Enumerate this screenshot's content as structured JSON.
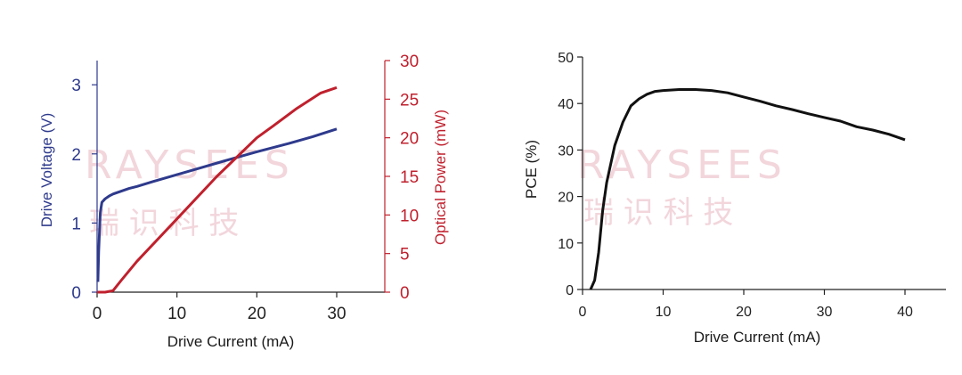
{
  "watermark": {
    "brand": "RAYSEES",
    "chinese": "瑞 识 科 技",
    "color": "#f2d6dc"
  },
  "chart_data": [
    {
      "type": "line",
      "xlabel": "Drive Current (mA)",
      "ylabel": "Drive Voltage (V)",
      "y2label": "Optical Power (mW)",
      "xlim": [
        0,
        35
      ],
      "ylim": [
        0,
        3.35
      ],
      "y2lim": [
        0,
        30
      ],
      "xticks": [
        0,
        10,
        20,
        30
      ],
      "yticks": [
        0,
        1,
        2,
        3
      ],
      "y2ticks": [
        0,
        5,
        10,
        15,
        20,
        25,
        30
      ],
      "grid": false,
      "series": [
        {
          "axis": "left",
          "color": "#2e3a8c",
          "x": [
            0.1,
            0.2,
            0.4,
            0.6,
            1,
            1.5,
            2,
            3,
            4,
            5,
            7,
            10,
            13,
            16,
            20,
            24,
            27,
            30
          ],
          "y": [
            0.15,
            0.6,
            1.15,
            1.3,
            1.35,
            1.39,
            1.42,
            1.46,
            1.5,
            1.53,
            1.6,
            1.7,
            1.8,
            1.9,
            2.03,
            2.15,
            2.25,
            2.36
          ]
        },
        {
          "axis": "right",
          "color": "#c0202d",
          "x": [
            0,
            1,
            2,
            3,
            5,
            10,
            15,
            20,
            22,
            25,
            28,
            30
          ],
          "y": [
            0,
            0,
            0.2,
            1.5,
            4,
            9.5,
            15,
            20,
            21.5,
            23.8,
            25.8,
            26.5
          ]
        }
      ]
    },
    {
      "type": "line",
      "xlabel": "Drive Current (mA)",
      "ylabel": "PCE (%)",
      "xlim": [
        0,
        45
      ],
      "ylim": [
        0,
        50
      ],
      "xticks": [
        0,
        10,
        20,
        30,
        40
      ],
      "yticks": [
        0,
        10,
        20,
        30,
        40,
        50
      ],
      "grid": false,
      "series": [
        {
          "color": "#111111",
          "x": [
            1,
            1.5,
            2,
            2.5,
            3,
            4,
            5,
            6,
            7,
            8,
            9,
            10,
            12,
            14,
            16,
            18,
            20,
            22,
            24,
            26,
            28,
            30,
            32,
            34,
            36,
            38,
            40
          ],
          "y": [
            0,
            2,
            8,
            17,
            23,
            31,
            36,
            39.5,
            41,
            42,
            42.6,
            42.8,
            43,
            43,
            42.8,
            42.3,
            41.4,
            40.5,
            39.5,
            38.7,
            37.8,
            37,
            36.2,
            35,
            34.3,
            33.4,
            32.2
          ]
        }
      ]
    }
  ]
}
